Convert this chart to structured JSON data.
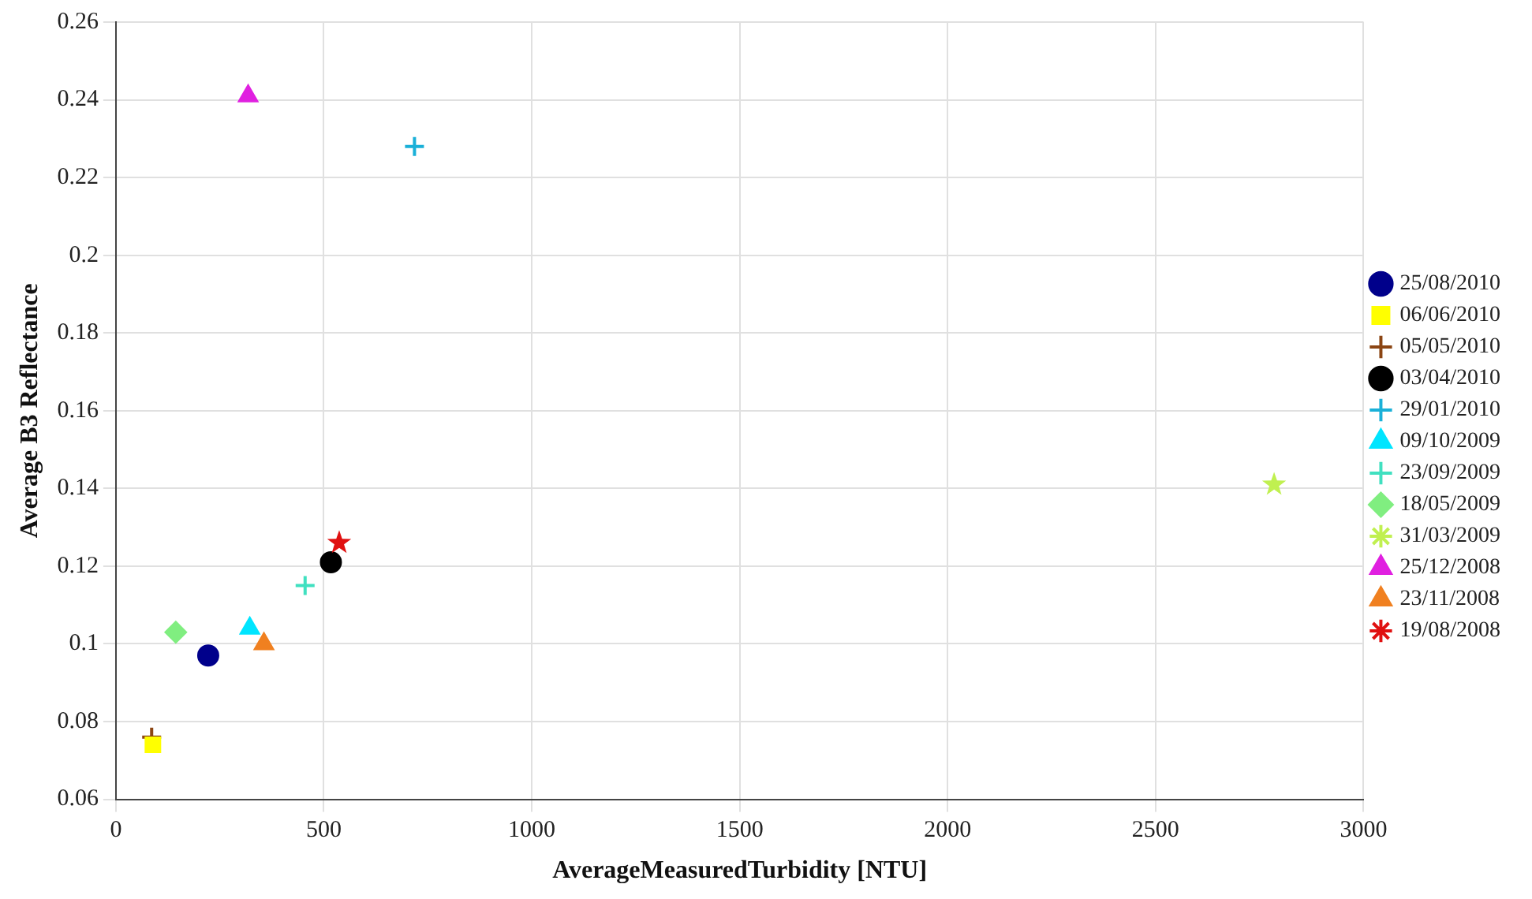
{
  "chart_data": {
    "type": "scatter",
    "xlabel": "AverageMeasuredTurbidity [NTU]",
    "ylabel": "Average B3 Reflectance",
    "xlim": [
      0,
      3000
    ],
    "xticks": [
      0,
      500,
      1000,
      1500,
      2000,
      2500,
      3000
    ],
    "ylim": [
      0.06,
      0.26
    ],
    "yticks": [
      0.06,
      0.08,
      0.1,
      0.12,
      0.14,
      0.16,
      0.18,
      0.2,
      0.22,
      0.24,
      0.26
    ],
    "grid": true,
    "legend": "right",
    "series": [
      {
        "name": "25/08/2010",
        "color": "#00008b",
        "marker": "circle",
        "x": [
          222
        ],
        "values": [
          0.097
        ]
      },
      {
        "name": "06/06/2010",
        "color": "#ffff00",
        "marker": "square",
        "x": [
          89
        ],
        "values": [
          0.074
        ]
      },
      {
        "name": "05/05/2010",
        "color": "#8b4513",
        "marker": "cross",
        "x": [
          86
        ],
        "values": [
          0.076
        ]
      },
      {
        "name": "03/04/2010",
        "color": "#000000",
        "marker": "circle",
        "x": [
          517
        ],
        "values": [
          0.121
        ]
      },
      {
        "name": "29/01/2010",
        "color": "#1ab0d8",
        "marker": "cross",
        "x": [
          718
        ],
        "values": [
          0.228
        ]
      },
      {
        "name": "09/10/2009",
        "color": "#00e5ff",
        "marker": "triangle",
        "x": [
          322
        ],
        "values": [
          0.104
        ]
      },
      {
        "name": "23/09/2009",
        "color": "#40e0c0",
        "marker": "cross",
        "x": [
          455
        ],
        "values": [
          0.115
        ]
      },
      {
        "name": "18/05/2009",
        "color": "#80ee80",
        "marker": "diamond",
        "x": [
          144
        ],
        "values": [
          0.103
        ]
      },
      {
        "name": "31/03/2009",
        "color": "#c0f050",
        "marker": "star",
        "x": [
          2785
        ],
        "values": [
          0.141
        ]
      },
      {
        "name": "25/12/2008",
        "color": "#e020e0",
        "marker": "triangle",
        "x": [
          318
        ],
        "values": [
          0.241
        ]
      },
      {
        "name": "23/11/2008",
        "color": "#f08020",
        "marker": "triangle",
        "x": [
          356
        ],
        "values": [
          0.1
        ]
      },
      {
        "name": "19/08/2008",
        "color": "#e01010",
        "marker": "star",
        "x": [
          537
        ],
        "values": [
          0.126
        ]
      }
    ]
  }
}
